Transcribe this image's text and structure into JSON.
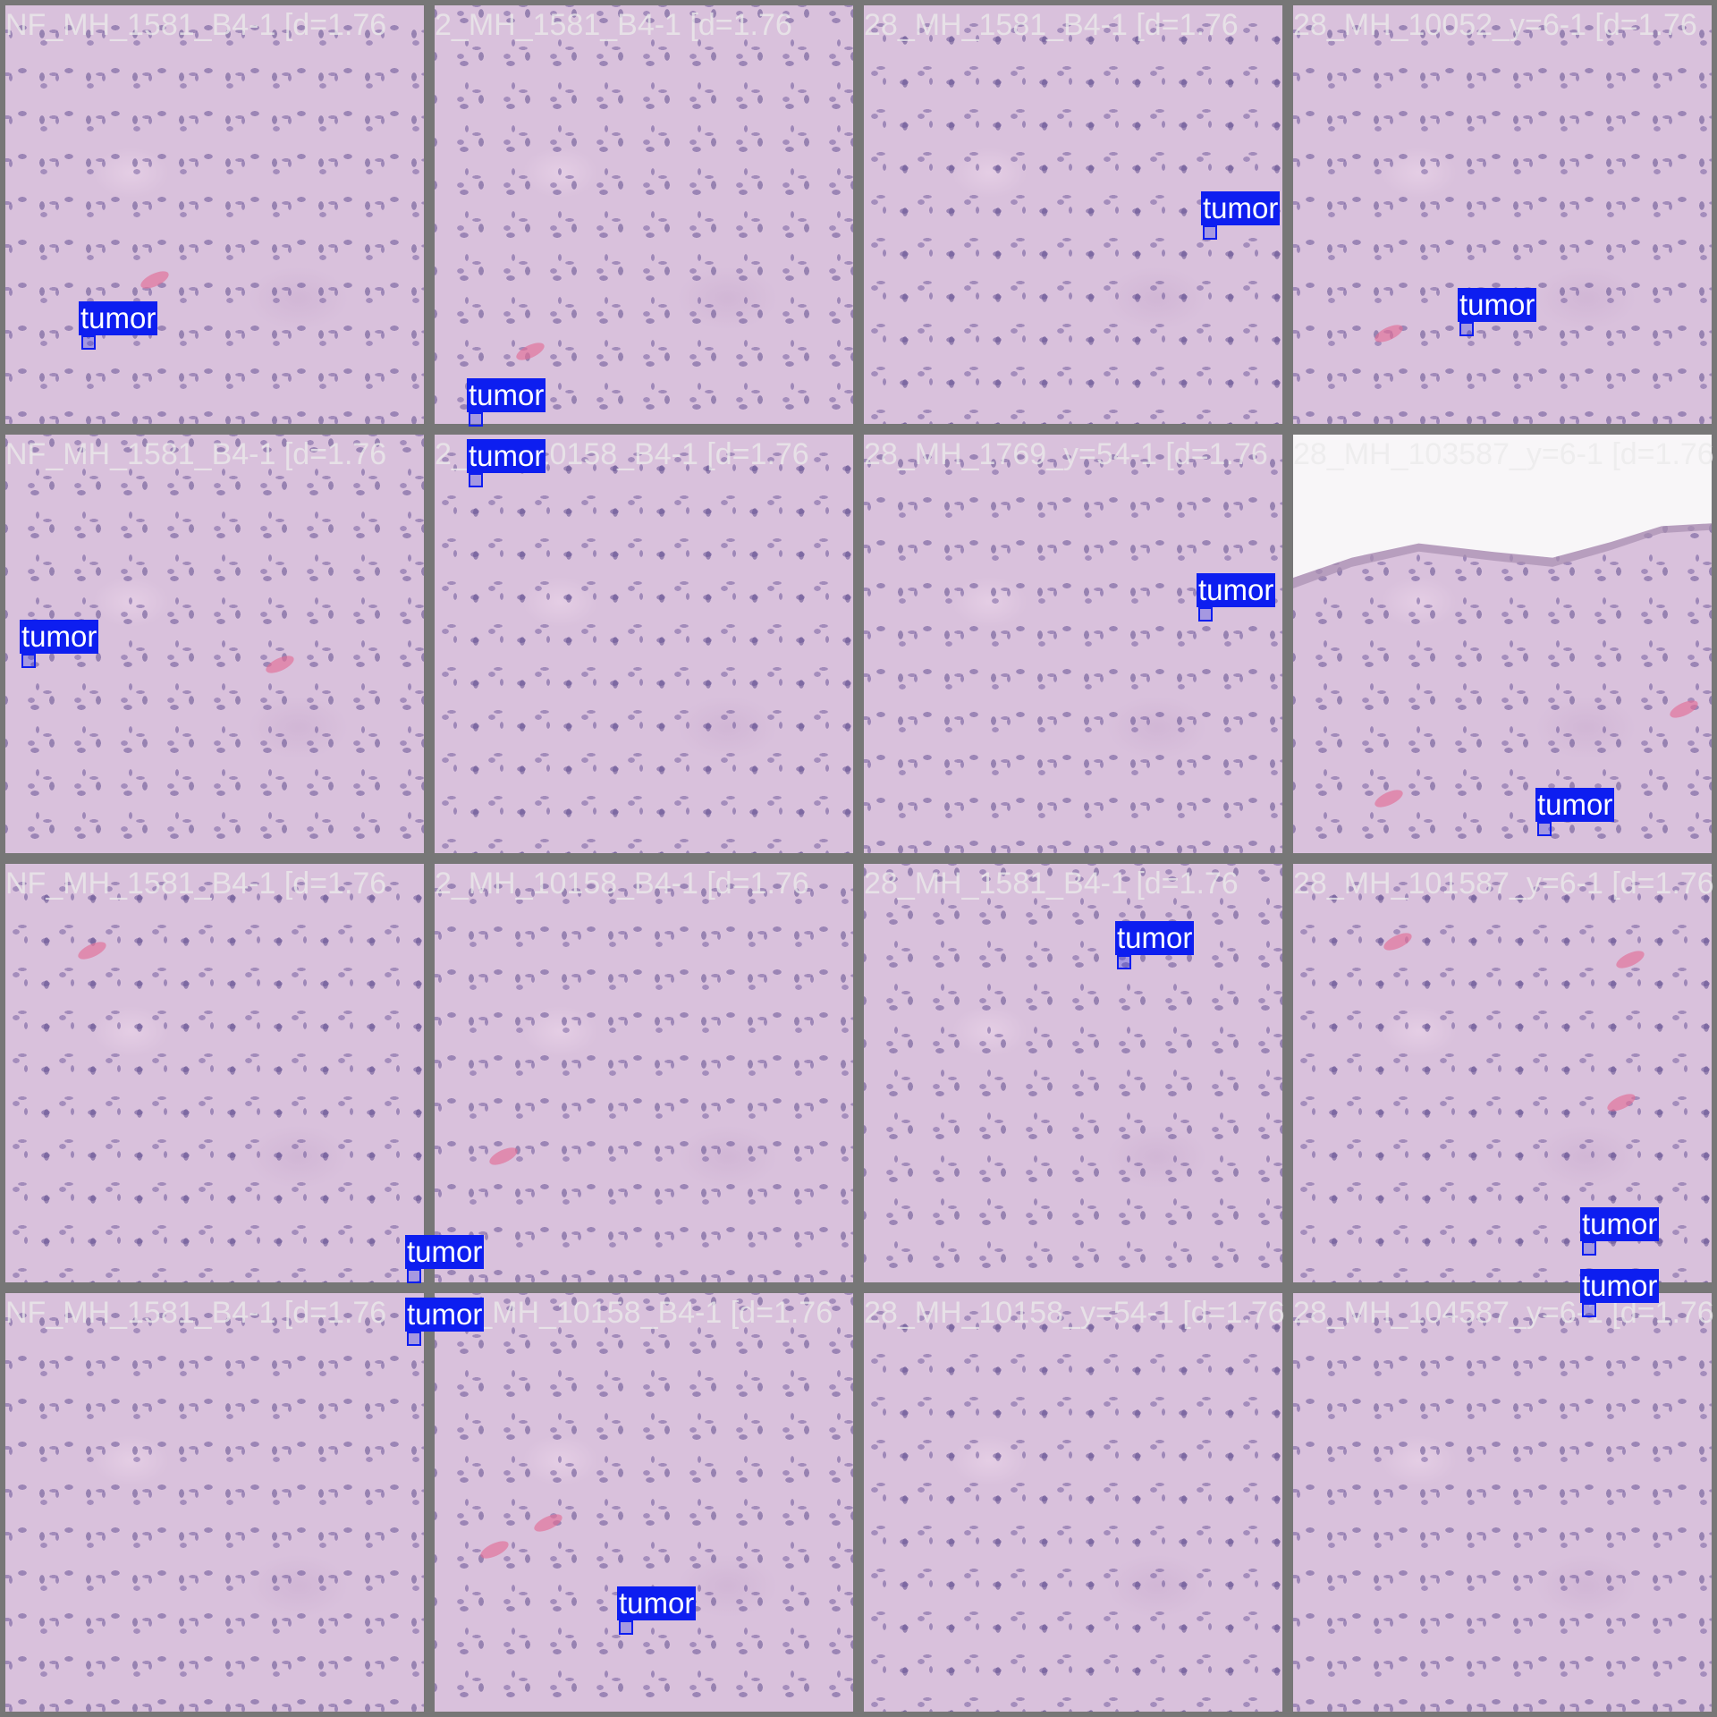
{
  "mosaic": {
    "tiles": [
      {
        "label": "NF_MH_1581_B4-1 [d=1.76"
      },
      {
        "label": "2_MH_1581_B4-1 [d=1.76"
      },
      {
        "label": "28_MH_1581_B4-1 [d=1.76"
      },
      {
        "label": "28_MH_10052_y=6-1 [d=1.76"
      },
      {
        "label": "NF_MH_1581_B4-1 [d=1.76"
      },
      {
        "label": "2_MH_10158_B4-1 [d=1.76"
      },
      {
        "label": "28_MH_1769_y=54-1 [d=1.76"
      },
      {
        "label": "28_MH_103587_y=6-1 [d=1.76"
      },
      {
        "label": "NF_MH_1581_B4-1 [d=1.76"
      },
      {
        "label": "2_MH_10158_B4-1 [d=1.76"
      },
      {
        "label": "28_MH_1581_B4-1 [d=1.76"
      },
      {
        "label": "28_MH_101587_y=6-1 [d=1.76"
      },
      {
        "label": "NF_MH_1581_B4-1 [d=1.76"
      },
      {
        "label": "NF_MH_10158_B4-1 [d=1.76"
      },
      {
        "label": "28_MH_10158_y=54-1 [d=1.76"
      },
      {
        "label": "28_MH_104587_y=6-1 [d=1.76"
      }
    ],
    "detection_label": "tumor",
    "detection_color": "#0d1ef0",
    "border_color": "#777777"
  }
}
